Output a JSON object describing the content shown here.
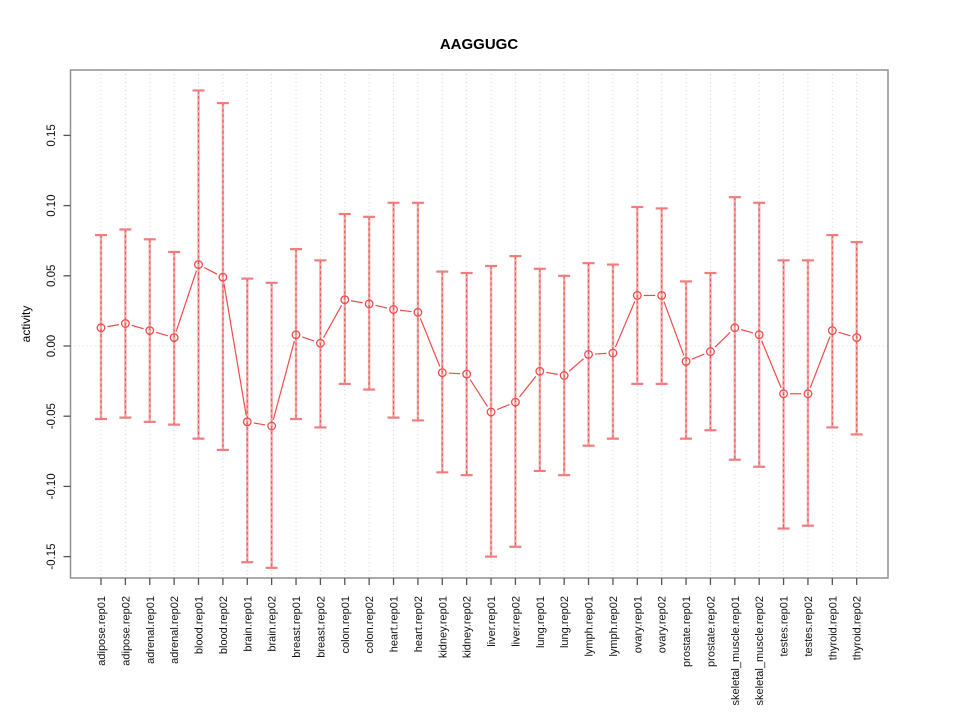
{
  "title": "AAGGUGC",
  "chart_data": {
    "type": "scatter",
    "title": "AAGGUGC",
    "xlabel": "",
    "ylabel": "activity",
    "ylim": [
      -0.1652,
      0.1966
    ],
    "yticks": [
      -0.15,
      -0.1,
      -0.05,
      0.0,
      0.05,
      0.1,
      0.15
    ],
    "ytick_labels": [
      "-0.15",
      "-0.10",
      "-0.05",
      "0.00",
      "0.05",
      "0.10",
      "0.15"
    ],
    "grid": "dotted vertical gridline at each category; dotted horizontal line at y=0; no legend",
    "marker": "open-circle",
    "line_between_points": true,
    "categories": [
      "adipose.rep01",
      "adipose.rep02",
      "adrenal.rep01",
      "adrenal.rep02",
      "blood.rep01",
      "blood.rep02",
      "brain.rep01",
      "brain.rep02",
      "breast.rep01",
      "breast.rep02",
      "colon.rep01",
      "colon.rep02",
      "heart.rep01",
      "heart.rep02",
      "kidney.rep01",
      "kidney.rep02",
      "liver.rep01",
      "liver.rep02",
      "lung.rep01",
      "lung.rep02",
      "lymph.rep01",
      "lymph.rep02",
      "ovary.rep01",
      "ovary.rep02",
      "prostate.rep01",
      "prostate.rep02",
      "skeletal_muscle.rep01",
      "skeletal_muscle.rep02",
      "testes.rep01",
      "testes.rep02",
      "thyroid.rep01",
      "thyroid.rep02"
    ],
    "series": [
      {
        "name": "activity",
        "values": [
          0.013,
          0.016,
          0.011,
          0.006,
          0.058,
          0.049,
          -0.054,
          -0.057,
          0.008,
          0.002,
          0.033,
          0.03,
          0.026,
          0.024,
          -0.019,
          -0.02,
          -0.047,
          -0.04,
          -0.018,
          -0.021,
          -0.006,
          -0.005,
          0.036,
          0.036,
          -0.011,
          -0.004,
          0.013,
          0.008,
          -0.034,
          -0.034,
          0.011,
          0.006
        ],
        "err_high": [
          0.079,
          0.083,
          0.076,
          0.067,
          0.182,
          0.173,
          0.048,
          0.045,
          0.069,
          0.061,
          0.094,
          0.092,
          0.102,
          0.102,
          0.053,
          0.052,
          0.057,
          0.064,
          0.055,
          0.05,
          0.059,
          0.058,
          0.099,
          0.098,
          0.046,
          0.052,
          0.106,
          0.102,
          0.061,
          0.061,
          0.079,
          0.074
        ],
        "err_low": [
          -0.052,
          -0.051,
          -0.054,
          -0.056,
          -0.066,
          -0.074,
          -0.154,
          -0.158,
          -0.052,
          -0.058,
          -0.027,
          -0.031,
          -0.051,
          -0.053,
          -0.09,
          -0.092,
          -0.15,
          -0.143,
          -0.089,
          -0.092,
          -0.071,
          -0.066,
          -0.027,
          -0.027,
          -0.066,
          -0.06,
          -0.081,
          -0.086,
          -0.13,
          -0.128,
          -0.058,
          -0.063
        ]
      }
    ],
    "colors": {
      "point_stroke": "#ef4b4b",
      "connect_line": "#ef4b4b",
      "error_bar_solid": "#f5a8a8",
      "error_bar_dashed": "#e04848",
      "error_bar_cap": "#f07d7d",
      "gridline": "#d4d4d4",
      "plot_border": "#909090",
      "tick": "#555555",
      "text": "#111111"
    }
  }
}
